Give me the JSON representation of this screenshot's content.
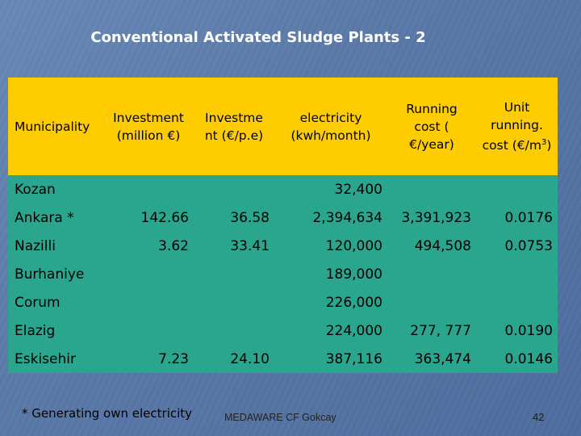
{
  "title": "Conventional Activated Sludge Plants - 2",
  "header": {
    "municipality": "Municipality",
    "investment": "Investment (million €)",
    "investment_pe": "Investme nt (€/p.e)",
    "electricity": "electricity (kwh/month)",
    "running_cost": "Running cost ( €/year)",
    "unit_running_prefix": "Unit running. cost (€/m",
    "unit_running_sup": "3",
    "unit_running_suffix": ")"
  },
  "rows": [
    {
      "municipality": "Kozan",
      "investment": "",
      "investment_pe": "",
      "electricity": "32,400",
      "running_cost": "",
      "unit_cost": ""
    },
    {
      "municipality": "Ankara  *",
      "investment": "142.66",
      "investment_pe": "36.58",
      "electricity": "2,394,634",
      "running_cost": "3,391,923",
      "unit_cost": "0.0176"
    },
    {
      "municipality": "Nazilli",
      "investment": "3.62",
      "investment_pe": "33.41",
      "electricity": "120,000",
      "running_cost": "494,508",
      "unit_cost": "0.0753"
    },
    {
      "municipality": "Burhaniye",
      "investment": "",
      "investment_pe": "",
      "electricity": "189,000",
      "running_cost": "",
      "unit_cost": ""
    },
    {
      "municipality": "Corum",
      "investment": "",
      "investment_pe": "",
      "electricity": "226,000",
      "running_cost": "",
      "unit_cost": ""
    },
    {
      "municipality": "Elazig",
      "investment": "",
      "investment_pe": "",
      "electricity": "224,000",
      "running_cost": "277, 777",
      "unit_cost": "0.0190"
    },
    {
      "municipality": "Eskisehir",
      "investment": "7.23",
      "investment_pe": "24.10",
      "electricity": "387,116",
      "running_cost": "363,474",
      "unit_cost": "0.0146"
    }
  ],
  "footnote": "*  Generating  own electricity",
  "footer_text": "MEDAWARE  CF Gokcay",
  "page_number": "42"
}
